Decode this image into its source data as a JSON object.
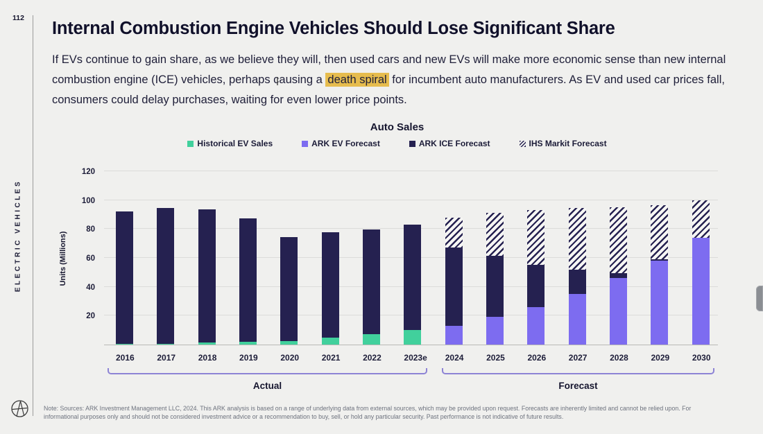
{
  "page": {
    "number": "112",
    "sidebar_label": "ELECTRIC VEHICLES"
  },
  "header": {
    "title": "Internal Combustion Engine Vehicles Should Lose Significant Share",
    "body_before": "If EVs continue to gain share, as we believe they will, then used cars and new EVs will make more economic sense than new internal combustion engine (ICE) vehicles, perhaps causing a ",
    "highlight": "death spiral",
    "body_after": " for incumbent auto manufacturers. As EV and used car prices fall, consumers could delay purchases, waiting for even lower price points.",
    "highlight_color": "#e6bc4e"
  },
  "chart_data": {
    "type": "bar",
    "stacked": true,
    "title": "Auto Sales",
    "ylabel": "Units (Millions)",
    "ylim": [
      0,
      120
    ],
    "yticks": [
      20,
      40,
      60,
      80,
      100,
      120
    ],
    "grid": true,
    "legend_position": "top",
    "categories": [
      "2016",
      "2017",
      "2018",
      "2019",
      "2020",
      "2021",
      "2022",
      "2023e",
      "2024",
      "2025",
      "2026",
      "2027",
      "2028",
      "2029",
      "2030"
    ],
    "series": [
      {
        "name": "Historical EV Sales",
        "color": "#41d09c",
        "values": [
          0.5,
          0.5,
          1.5,
          2,
          2.5,
          5,
          7,
          10,
          0,
          0,
          0,
          0,
          0,
          0,
          0
        ]
      },
      {
        "name": "ARK EV Forecast",
        "color": "#7d6cf0",
        "values": [
          0,
          0,
          0,
          0,
          0,
          0,
          0,
          0,
          13,
          19,
          26,
          35,
          46,
          58,
          74
        ]
      },
      {
        "name": "ARK ICE Forecast",
        "color": "#252150",
        "values": [
          91.5,
          94,
          92,
          85.5,
          72,
          73,
          72.5,
          73,
          54,
          42.5,
          29,
          17,
          3.5,
          1,
          0
        ]
      },
      {
        "name": "IHS Markit Forecast",
        "color": "#252150",
        "style": "hatch",
        "values": [
          0,
          0,
          0,
          0,
          0,
          0,
          0,
          0,
          21,
          29.5,
          38,
          42.5,
          45.5,
          37.5,
          26
        ]
      }
    ],
    "group_brackets": [
      {
        "label": "Actual",
        "from": "2016",
        "to": "2023e"
      },
      {
        "label": "Forecast",
        "from": "2024",
        "to": "2030"
      }
    ]
  },
  "footer": {
    "note": "Note: Sources: ARK Investment Management LLC, 2024. This ARK analysis is based on a range of underlying data from external sources, which may be provided upon request. Forecasts are inherently limited and cannot be relied upon. For informational purposes only and should not be considered investment advice or a recommendation to buy, sell, or hold any particular security. Past performance is not indicative of future results."
  },
  "colors": {
    "background": "#f0f0ee",
    "text_navy": "#15152e",
    "bar_navy": "#252150",
    "bar_green": "#41d09c",
    "bar_purple": "#7d6cf0",
    "highlight": "#e6bc4e",
    "bracket": "#8d83d5",
    "note_gray": "#6d727e"
  }
}
